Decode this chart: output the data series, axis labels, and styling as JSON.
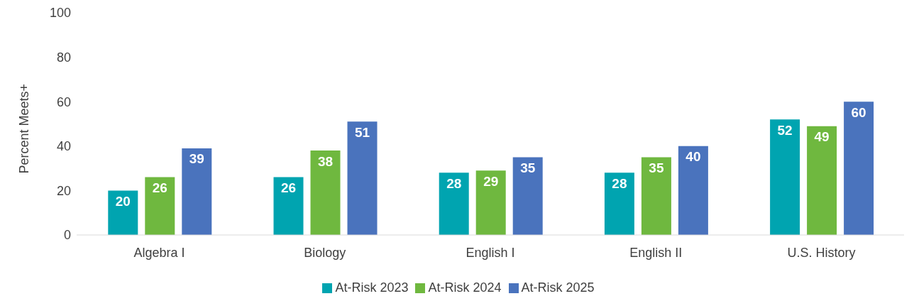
{
  "chart_data": {
    "type": "bar",
    "ylabel": "Percent Meets+",
    "categories": [
      "Algebra I",
      "Biology",
      "English I",
      "English II",
      "U.S. History"
    ],
    "series": [
      {
        "name": "At-Risk 2023",
        "color": "#00a4b0",
        "values": [
          20,
          26,
          28,
          28,
          52
        ]
      },
      {
        "name": "At-Risk 2024",
        "color": "#6fb83f",
        "values": [
          26,
          38,
          29,
          35,
          49
        ]
      },
      {
        "name": "At-Risk 2025",
        "color": "#4a73bd",
        "values": [
          39,
          51,
          35,
          40,
          60
        ]
      }
    ],
    "ylim": [
      0,
      100
    ],
    "yticks": [
      0,
      20,
      40,
      60,
      80,
      100
    ],
    "grid": false,
    "legend": "bottom",
    "data_labels": true
  }
}
